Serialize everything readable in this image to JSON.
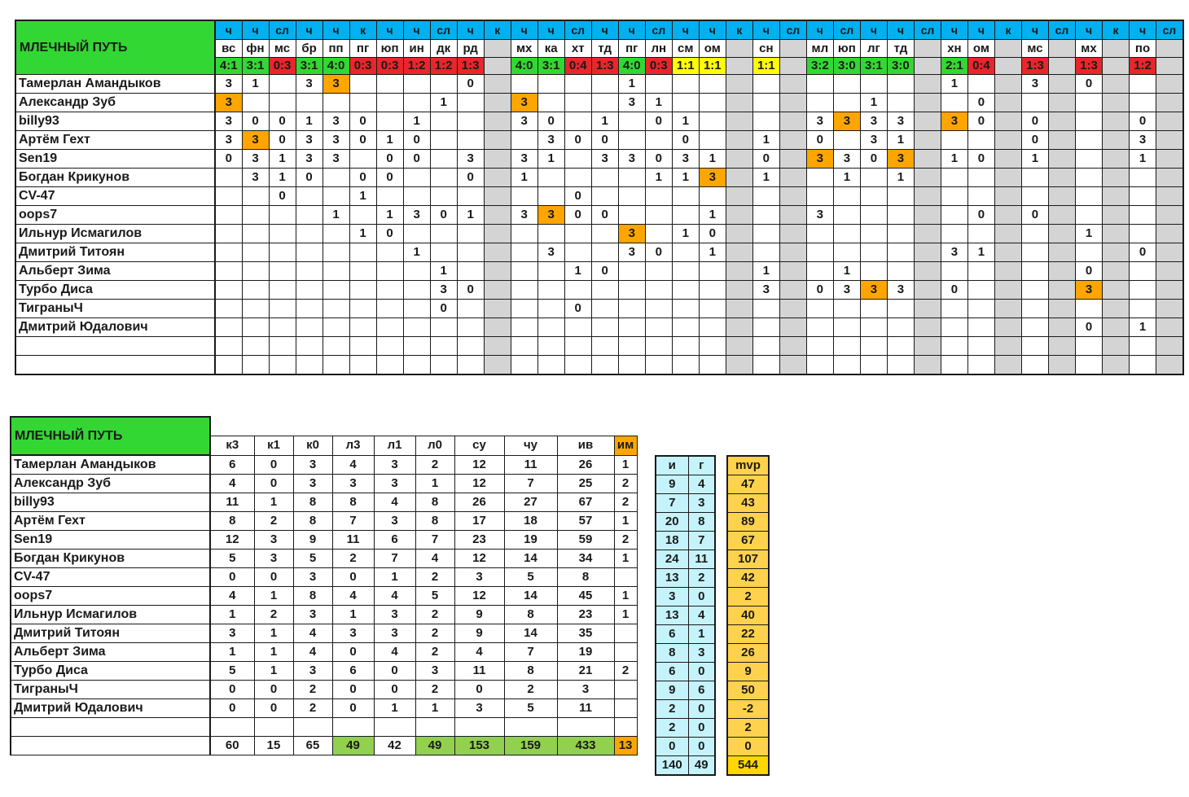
{
  "team_name": "МЛЕЧНЫЙ ПУТЬ",
  "schedule": {
    "types": [
      "ч",
      "ч",
      "сл",
      "ч",
      "ч",
      "к",
      "ч",
      "ч",
      "сл",
      "ч",
      "к",
      "ч",
      "ч",
      "сл",
      "ч",
      "ч",
      "сл",
      "ч",
      "ч",
      "к",
      "ч",
      "сл",
      "ч",
      "сл",
      "ч",
      "ч",
      "сл",
      "ч",
      "ч",
      "к",
      "ч",
      "сл",
      "ч",
      "к",
      "ч",
      "сл"
    ],
    "opponents": [
      "вс",
      "фн",
      "мс",
      "бр",
      "пп",
      "пг",
      "юп",
      "ин",
      "дк",
      "рд",
      "",
      "мх",
      "ка",
      "хт",
      "тд",
      "пг",
      "лн",
      "см",
      "ом",
      "",
      "сн",
      "",
      "мл",
      "юп",
      "лг",
      "тд",
      "",
      "хн",
      "ом",
      "",
      "мс",
      "",
      "мх",
      "",
      "по",
      ""
    ],
    "scores": [
      "4:1",
      "3:1",
      "0:3",
      "3:1",
      "4:0",
      "0:3",
      "0:3",
      "1:2",
      "1:2",
      "1:3",
      "",
      "4:0",
      "3:1",
      "0:4",
      "1:3",
      "4:0",
      "0:3",
      "1:1",
      "1:1",
      "",
      "1:1",
      "",
      "3:2",
      "3:0",
      "3:1",
      "3:0",
      "",
      "2:1",
      "0:4",
      "",
      "1:3",
      "",
      "1:3",
      "",
      "1:2",
      ""
    ],
    "score_colors": [
      "g",
      "g",
      "r",
      "g",
      "g",
      "r",
      "r",
      "r",
      "r",
      "r",
      "gr",
      "g",
      "g",
      "r",
      "r",
      "g",
      "r",
      "y",
      "y",
      "gr",
      "y",
      "gr",
      "g",
      "g",
      "g",
      "g",
      "gr",
      "g",
      "r",
      "gr",
      "r",
      "gr",
      "r",
      "gr",
      "r",
      "gr"
    ],
    "players": [
      {
        "name": "Тамерлан Амандыков",
        "cells": [
          "3",
          "1",
          "",
          "3",
          "3*",
          "",
          "",
          "",
          "",
          "0",
          "",
          "",
          "",
          "",
          "",
          "1",
          "",
          "",
          "",
          "",
          "",
          "",
          "",
          "",
          "",
          "",
          "",
          "1",
          "",
          "",
          "3",
          "",
          "0",
          "",
          "",
          ""
        ]
      },
      {
        "name": "Александр Зуб",
        "cells": [
          "3*",
          "",
          "",
          "",
          "",
          "",
          "",
          "",
          "1",
          "",
          "",
          "3*",
          "",
          "",
          "",
          "3",
          "1",
          "",
          "",
          "",
          "",
          "",
          "",
          "",
          "1",
          "",
          "",
          "",
          "0",
          "",
          "",
          "",
          "",
          "",
          "",
          ""
        ]
      },
      {
        "name": "billy93",
        "cells": [
          "3",
          "0",
          "0",
          "1",
          "3",
          "0",
          "",
          "1",
          "",
          "",
          "",
          "3",
          "0",
          "",
          "1",
          "",
          "0",
          "1",
          "",
          "",
          "",
          "",
          "3",
          "3*",
          "3",
          "3",
          "",
          "3*",
          "0",
          "",
          "0",
          "",
          "",
          "",
          "0",
          ""
        ]
      },
      {
        "name": "Артём Гехт",
        "cells": [
          "3",
          "3*",
          "0",
          "3",
          "3",
          "0",
          "1",
          "0",
          "",
          "",
          "",
          "",
          "3",
          "0",
          "0",
          "",
          "",
          "0",
          "",
          "",
          "1",
          "",
          "0",
          "",
          "3",
          "1",
          "",
          "",
          "",
          "",
          "0",
          "",
          "",
          "",
          "3",
          ""
        ]
      },
      {
        "name": "Sen19",
        "cells": [
          "0",
          "3",
          "1",
          "3",
          "3",
          "",
          "0",
          "0",
          "",
          "3",
          "",
          "3",
          "1",
          "",
          "3",
          "3",
          "0",
          "3",
          "1",
          "",
          "0",
          "",
          "3*",
          "3",
          "0",
          "3*",
          "",
          "1",
          "0",
          "",
          "1",
          "",
          "",
          "",
          "1",
          ""
        ]
      },
      {
        "name": "Богдан Крикунов",
        "cells": [
          "",
          "3",
          "1",
          "0",
          "",
          "0",
          "0",
          "",
          "",
          "0",
          "",
          "1",
          "",
          "",
          "",
          "",
          "1",
          "1",
          "3*",
          "",
          "1",
          "",
          "",
          "1",
          "",
          "1",
          "",
          "",
          "",
          "",
          "",
          "",
          "",
          "",
          "",
          ""
        ]
      },
      {
        "name": "CV-47",
        "cells": [
          "",
          "",
          "0",
          "",
          "",
          "1",
          "",
          "",
          "",
          "",
          "",
          "",
          "",
          "0",
          "",
          "",
          "",
          "",
          "",
          "",
          "",
          "",
          "",
          "",
          "",
          "",
          "",
          "",
          "",
          "",
          "",
          "",
          "",
          "",
          "",
          ""
        ]
      },
      {
        "name": "oops7",
        "cells": [
          "",
          "",
          "",
          "",
          "1",
          "",
          "1",
          "3",
          "0",
          "1",
          "",
          "3",
          "3*",
          "0",
          "0",
          "",
          "",
          "",
          "1",
          "",
          "",
          "",
          "3",
          "",
          "",
          "",
          "",
          "",
          "0",
          "",
          "0",
          "",
          "",
          "",
          "",
          ""
        ]
      },
      {
        "name": "Ильнур Исмагилов",
        "cells": [
          "",
          "",
          "",
          "",
          "",
          "1",
          "0",
          "",
          "",
          "",
          "",
          "",
          "",
          "",
          "",
          "3*",
          "",
          "1",
          "0",
          "",
          "",
          "",
          "",
          "",
          "",
          "",
          "",
          "",
          "",
          "",
          "",
          "",
          "1",
          "",
          "",
          ""
        ]
      },
      {
        "name": "Дмитрий Титоян",
        "cells": [
          "",
          "",
          "",
          "",
          "",
          "",
          "",
          "1",
          "",
          "",
          "",
          "",
          "3",
          "",
          "",
          "3",
          "0",
          "",
          "1",
          "",
          "",
          "",
          "",
          "",
          "",
          "",
          "",
          "3",
          "1",
          "",
          "",
          "",
          "",
          "",
          "0",
          ""
        ]
      },
      {
        "name": "Альберт Зима",
        "cells": [
          "",
          "",
          "",
          "",
          "",
          "",
          "",
          "",
          "1",
          "",
          "",
          "",
          "",
          "1",
          "0",
          "",
          "",
          "",
          "",
          "",
          "1",
          "",
          "",
          "1",
          "",
          "",
          "",
          "",
          "",
          "",
          "",
          "",
          "0",
          "",
          "",
          ""
        ]
      },
      {
        "name": "Турбо Диса",
        "cells": [
          "",
          "",
          "",
          "",
          "",
          "",
          "",
          "",
          "3",
          "0",
          "",
          "",
          "",
          "",
          "",
          "",
          "",
          "",
          "",
          "",
          "3",
          "",
          "0",
          "3",
          "3*",
          "3",
          "",
          "0",
          "",
          "",
          "",
          "",
          "3*",
          "",
          "",
          ""
        ]
      },
      {
        "name": "ТиграныЧ",
        "cells": [
          "",
          "",
          "",
          "",
          "",
          "",
          "",
          "",
          "0",
          "",
          "",
          "",
          "",
          "0",
          "",
          "",
          "",
          "",
          "",
          "",
          "",
          "",
          "",
          "",
          "",
          "",
          "",
          "",
          "",
          "",
          "",
          "",
          "",
          "",
          "",
          ""
        ]
      },
      {
        "name": "Дмитрий Юдалович",
        "cells": [
          "",
          "",
          "",
          "",
          "",
          "",
          "",
          "",
          "",
          "",
          "",
          "",
          "",
          "",
          "",
          "",
          "",
          "",
          "",
          "",
          "",
          "",
          "",
          "",
          "",
          "",
          "",
          "",
          "",
          "",
          "",
          "",
          "0",
          "",
          "1",
          ""
        ]
      }
    ]
  },
  "stats": {
    "headers": [
      "к3",
      "к1",
      "к0",
      "л3",
      "л1",
      "л0",
      "су",
      "чу",
      "ив",
      "им"
    ],
    "side_headers": [
      "и",
      "г"
    ],
    "mvp_header": "mvp",
    "rows": [
      {
        "name": "Тамерлан Амандыков",
        "v": [
          "6",
          "0",
          "3",
          "4",
          "3",
          "2",
          "12",
          "11",
          "26",
          "1"
        ],
        "i": "9",
        "g": "4",
        "mvp": "47"
      },
      {
        "name": "Александр Зуб",
        "v": [
          "4",
          "0",
          "3",
          "3",
          "3",
          "1",
          "12",
          "7",
          "25",
          "2"
        ],
        "i": "7",
        "g": "3",
        "mvp": "43"
      },
      {
        "name": "billy93",
        "v": [
          "11",
          "1",
          "8",
          "8",
          "4",
          "8",
          "26",
          "27",
          "67",
          "2"
        ],
        "i": "20",
        "g": "8",
        "mvp": "89"
      },
      {
        "name": "Артём Гехт",
        "v": [
          "8",
          "2",
          "8",
          "7",
          "3",
          "8",
          "17",
          "18",
          "57",
          "1"
        ],
        "i": "18",
        "g": "7",
        "mvp": "67"
      },
      {
        "name": "Sen19",
        "v": [
          "12",
          "3",
          "9",
          "11",
          "6",
          "7",
          "23",
          "19",
          "59",
          "2"
        ],
        "i": "24",
        "g": "11",
        "mvp": "107"
      },
      {
        "name": "Богдан Крикунов",
        "v": [
          "5",
          "3",
          "5",
          "2",
          "7",
          "4",
          "12",
          "14",
          "34",
          "1"
        ],
        "i": "13",
        "g": "2",
        "mvp": "42"
      },
      {
        "name": "CV-47",
        "v": [
          "0",
          "0",
          "3",
          "0",
          "1",
          "2",
          "3",
          "5",
          "8",
          ""
        ],
        "i": "3",
        "g": "0",
        "mvp": "2"
      },
      {
        "name": "oops7",
        "v": [
          "4",
          "1",
          "8",
          "4",
          "4",
          "5",
          "12",
          "14",
          "45",
          "1"
        ],
        "i": "13",
        "g": "4",
        "mvp": "40"
      },
      {
        "name": "Ильнур Исмагилов",
        "v": [
          "1",
          "2",
          "3",
          "1",
          "3",
          "2",
          "9",
          "8",
          "23",
          "1"
        ],
        "i": "6",
        "g": "1",
        "mvp": "22"
      },
      {
        "name": "Дмитрий Титоян",
        "v": [
          "3",
          "1",
          "4",
          "3",
          "3",
          "2",
          "9",
          "14",
          "35",
          ""
        ],
        "i": "8",
        "g": "3",
        "mvp": "26"
      },
      {
        "name": "Альберт Зима",
        "v": [
          "1",
          "1",
          "4",
          "0",
          "4",
          "2",
          "4",
          "7",
          "19",
          ""
        ],
        "i": "6",
        "g": "0",
        "mvp": "9"
      },
      {
        "name": "Турбо Диса",
        "v": [
          "5",
          "1",
          "3",
          "6",
          "0",
          "3",
          "11",
          "8",
          "21",
          "2"
        ],
        "i": "9",
        "g": "6",
        "mvp": "50"
      },
      {
        "name": "ТиграныЧ",
        "v": [
          "0",
          "0",
          "2",
          "0",
          "0",
          "2",
          "0",
          "2",
          "3",
          ""
        ],
        "i": "2",
        "g": "0",
        "mvp": "-2"
      },
      {
        "name": "Дмитрий Юдалович",
        "v": [
          "0",
          "0",
          "2",
          "0",
          "1",
          "1",
          "3",
          "5",
          "11",
          ""
        ],
        "i": "2",
        "g": "0",
        "mvp": "2"
      },
      {
        "name": "",
        "v": [
          "",
          "",
          "",
          "",
          "",
          "",
          "",
          "",
          "",
          ""
        ],
        "i": "0",
        "g": "0",
        "mvp": "0"
      }
    ],
    "totals": {
      "v": [
        "60",
        "15",
        "65",
        "49",
        "42",
        "49",
        "153",
        "159",
        "433",
        "13"
      ],
      "i": "140",
      "g": "49",
      "mvp": "544"
    }
  },
  "colors": {
    "green": "#33d733",
    "red": "#e8262b",
    "yellow": "#ffff00",
    "orange": "#ffa500",
    "gray": "#d4d4d4",
    "blue": "#00b0f0",
    "cyan": "#c5f3fb",
    "gold": "#ffd24d",
    "lightgreen": "#92d050"
  }
}
